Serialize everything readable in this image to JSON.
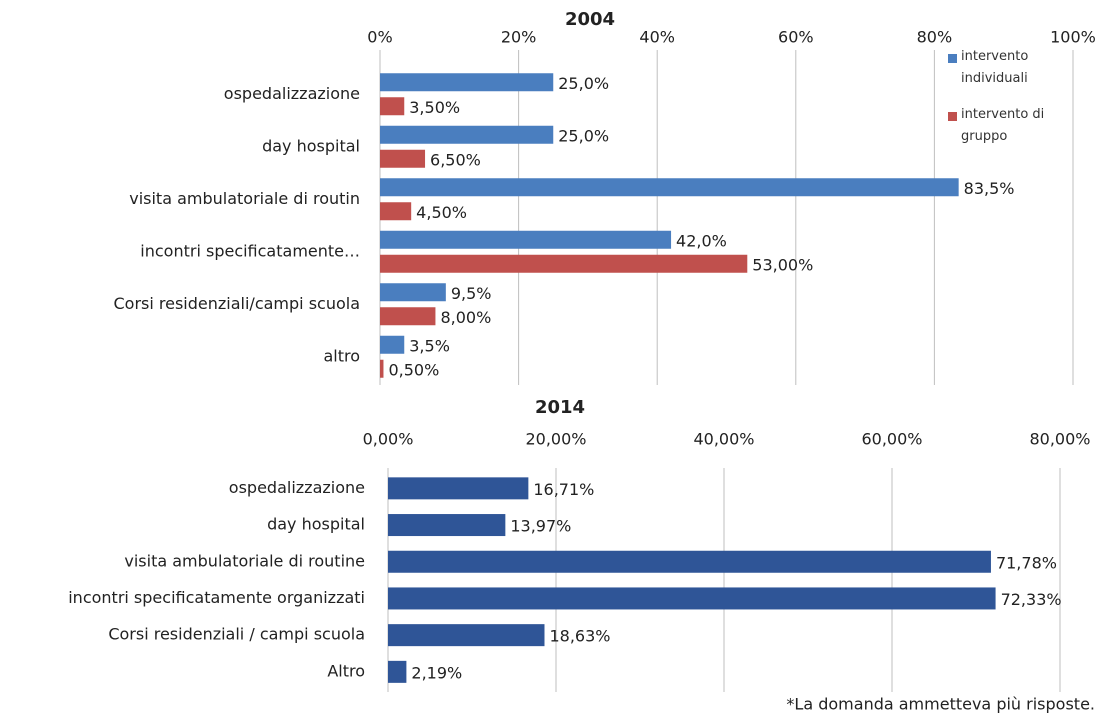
{
  "chart_data": [
    {
      "type": "bar",
      "orientation": "horizontal",
      "title": "2004",
      "categories": [
        "ospedalizzazione",
        "day hospital",
        "visita ambulatoriale di routin",
        "incontri specificatamente…",
        "Corsi residenziali/campi scuola",
        "altro"
      ],
      "series": [
        {
          "name": "intervento individuali",
          "color": "#4a7ebf",
          "values": [
            25.0,
            25.0,
            83.5,
            42.0,
            9.5,
            3.5
          ],
          "value_labels": [
            "25,0%",
            "25,0%",
            "83,5%",
            "42,0%",
            "9,5%",
            "3,5%"
          ]
        },
        {
          "name": "intervento di gruppo",
          "color": "#c0504d",
          "values": [
            3.5,
            6.5,
            4.5,
            53.0,
            8.0,
            0.5
          ],
          "value_labels": [
            "3,50%",
            "6,50%",
            "4,50%",
            "53,00%",
            "8,00%",
            "0,50%"
          ]
        }
      ],
      "xlim": [
        0,
        100
      ],
      "xticks": [
        {
          "value": 0,
          "label": "0%"
        },
        {
          "value": 20,
          "label": "20%"
        },
        {
          "value": 40,
          "label": "40%"
        },
        {
          "value": 60,
          "label": "60%"
        },
        {
          "value": 80,
          "label": "80%"
        },
        {
          "value": 100,
          "label": "100%"
        }
      ],
      "grid": true,
      "legend": "top-right"
    },
    {
      "type": "bar",
      "orientation": "horizontal",
      "title": "2014",
      "categories": [
        "ospedalizzazione",
        "day hospital",
        "visita ambulatoriale di routine",
        "incontri specificatamente organizzati",
        "Corsi residenziali / campi scuola",
        "Altro"
      ],
      "series": [
        {
          "color": "#2f5597",
          "values": [
            16.71,
            13.97,
            71.78,
            72.33,
            18.63,
            2.19
          ],
          "value_labels": [
            "16,71%",
            "13,97%",
            "71,78%",
            "72,33%",
            "18,63%",
            "2,19%"
          ]
        }
      ],
      "xlim": [
        0,
        80
      ],
      "xticks": [
        {
          "value": 0,
          "label": "0,00%"
        },
        {
          "value": 20,
          "label": "20,00%"
        },
        {
          "value": 40,
          "label": "40,00%"
        },
        {
          "value": 60,
          "label": "60,00%"
        },
        {
          "value": 80,
          "label": "80,00%"
        }
      ],
      "grid": true
    }
  ],
  "footnote": "*La domanda ammetteva più risposte."
}
